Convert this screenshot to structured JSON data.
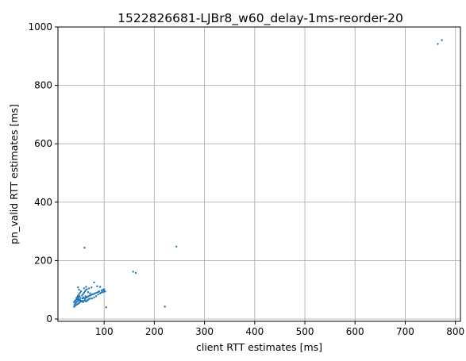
{
  "chart_data": {
    "type": "scatter",
    "title": "1522826681-LJBr8_w60_delay-1ms-reorder-20",
    "xlabel": "client RTT estimates [ms]",
    "ylabel": "pn_valid RTT estimates [ms]",
    "xlim": [
      8,
      810
    ],
    "ylim": [
      -8,
      1000
    ],
    "xticks": [
      100,
      200,
      300,
      400,
      500,
      600,
      700,
      800
    ],
    "yticks": [
      0,
      200,
      400,
      600,
      800,
      1000
    ],
    "grid": true,
    "marker_color": "#1f77b4",
    "series": [
      {
        "points": [
          [
            40,
            42
          ],
          [
            42,
            45
          ],
          [
            44,
            48
          ],
          [
            46,
            50
          ],
          [
            48,
            52
          ],
          [
            50,
            55
          ],
          [
            52,
            58
          ],
          [
            54,
            60
          ],
          [
            41,
            50
          ],
          [
            43,
            55
          ],
          [
            45,
            58
          ],
          [
            47,
            61
          ],
          [
            49,
            64
          ],
          [
            51,
            66
          ],
          [
            53,
            63
          ],
          [
            55,
            60
          ],
          [
            40,
            58
          ],
          [
            42,
            62
          ],
          [
            44,
            66
          ],
          [
            46,
            68
          ],
          [
            48,
            70
          ],
          [
            50,
            67
          ],
          [
            52,
            65
          ],
          [
            56,
            62
          ],
          [
            58,
            58
          ],
          [
            60,
            62
          ],
          [
            62,
            65
          ],
          [
            64,
            60
          ],
          [
            66,
            63
          ],
          [
            68,
            66
          ],
          [
            70,
            68
          ],
          [
            72,
            70
          ],
          [
            61,
            70
          ],
          [
            63,
            72
          ],
          [
            65,
            74
          ],
          [
            67,
            76
          ],
          [
            69,
            78
          ],
          [
            71,
            80
          ],
          [
            74,
            82
          ],
          [
            76,
            84
          ],
          [
            78,
            85
          ],
          [
            80,
            86
          ],
          [
            82,
            88
          ],
          [
            85,
            90
          ],
          [
            88,
            92
          ],
          [
            90,
            95
          ],
          [
            95,
            98
          ],
          [
            98,
            100
          ],
          [
            56,
            80
          ],
          [
            58,
            85
          ],
          [
            60,
            90
          ],
          [
            62,
            95
          ],
          [
            64,
            100
          ],
          [
            66,
            102
          ],
          [
            70,
            105
          ],
          [
            75,
            108
          ],
          [
            48,
            80
          ],
          [
            50,
            85
          ],
          [
            52,
            90
          ],
          [
            54,
            95
          ],
          [
            50,
            100
          ],
          [
            48,
            108
          ],
          [
            60,
            105
          ],
          [
            64,
            110
          ],
          [
            80,
            125
          ],
          [
            86,
            112
          ],
          [
            92,
            110
          ],
          [
            96,
            92
          ],
          [
            100,
            96
          ],
          [
            100,
            102
          ],
          [
            72,
            88
          ],
          [
            68,
            92
          ],
          [
            45,
            72
          ],
          [
            47,
            76
          ],
          [
            49,
            74
          ],
          [
            51,
            78
          ],
          [
            53,
            72
          ],
          [
            57,
            70
          ],
          [
            59,
            74
          ],
          [
            63,
            78
          ],
          [
            76,
            70
          ],
          [
            80,
            74
          ],
          [
            84,
            78
          ],
          [
            88,
            84
          ],
          [
            92,
            88
          ],
          [
            94,
            90
          ],
          [
            98,
            92
          ],
          [
            102,
            94
          ],
          [
            104,
            40
          ],
          [
            61,
            244
          ],
          [
            158,
            162
          ],
          [
            163,
            158
          ],
          [
            221,
            42
          ],
          [
            244,
            248
          ],
          [
            765,
            942
          ],
          [
            773,
            955
          ]
        ]
      }
    ]
  }
}
